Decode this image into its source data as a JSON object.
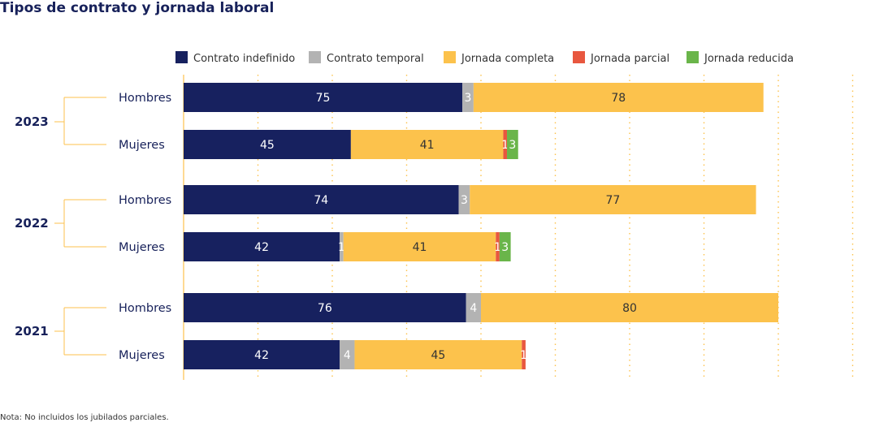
{
  "chart_data": {
    "type": "bar",
    "orientation": "horizontal",
    "stacked": true,
    "title": "Tipos de contrato y jornada laboral",
    "note": "Nota: No incluidos los jubilados parciales.",
    "groups": [
      {
        "year": "2023",
        "rows": [
          {
            "label": "Hombres",
            "values": [
              75,
              3,
              78,
              0,
              0
            ],
            "labels": [
              "75",
              "3",
              "78",
              "",
              ""
            ]
          },
          {
            "label": "Mujeres",
            "values": [
              45,
              0,
              41,
              1,
              3
            ],
            "labels": [
              "45",
              "",
              "41",
              "1",
              "3"
            ]
          }
        ]
      },
      {
        "year": "2022",
        "rows": [
          {
            "label": "Hombres",
            "values": [
              74,
              3,
              77,
              0,
              0
            ],
            "labels": [
              "74",
              "3",
              "77",
              "",
              ""
            ]
          },
          {
            "label": "Mujeres",
            "values": [
              42,
              1,
              41,
              1,
              3
            ],
            "labels": [
              "42",
              "1",
              "41",
              "1",
              "3"
            ]
          }
        ]
      },
      {
        "year": "2021",
        "rows": [
          {
            "label": "Hombres",
            "values": [
              76,
              4,
              80,
              0,
              0
            ],
            "labels": [
              "76",
              "4",
              "80",
              "",
              ""
            ]
          },
          {
            "label": "Mujeres",
            "values": [
              42,
              4,
              45,
              1,
              0
            ],
            "labels": [
              "42",
              "4",
              "45",
              "1",
              ""
            ]
          }
        ]
      }
    ],
    "series": [
      {
        "name": "Contrato indefinido",
        "color": "#17215f",
        "label_color": "#ffffff"
      },
      {
        "name": "Contrato temporal",
        "color": "#b3b3b3",
        "label_color": "#ffffff"
      },
      {
        "name": "Jornada completa",
        "color": "#fcc24c",
        "label_color": "#333333"
      },
      {
        "name": "Jornada parcial",
        "color": "#e8573f",
        "label_color": "#ffffff"
      },
      {
        "name": "Jornada reducida",
        "color": "#6ab54a",
        "label_color": "#ffffff"
      }
    ],
    "xlim": [
      0,
      180
    ],
    "grid": true,
    "legend_position": "top",
    "bracket_color": "#fcc24c"
  }
}
